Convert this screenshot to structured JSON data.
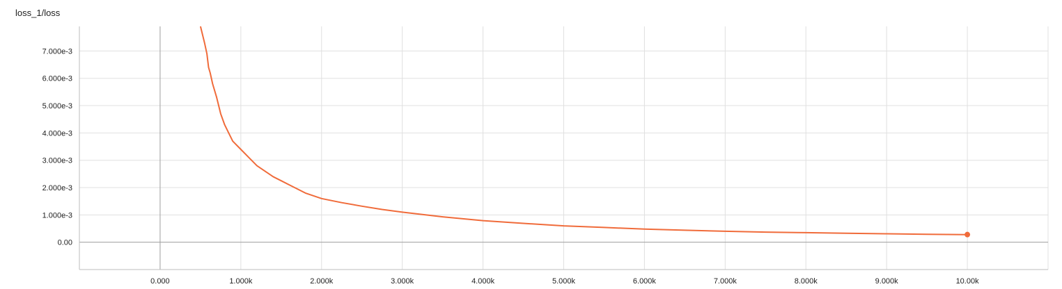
{
  "chart_data": {
    "type": "line",
    "title": "loss_1/loss",
    "xlabel": "",
    "ylabel": "",
    "xlim": [
      -1000,
      11000
    ],
    "ylim": [
      -0.001,
      0.0079
    ],
    "x_ticks": [
      0,
      1000,
      2000,
      3000,
      4000,
      5000,
      6000,
      7000,
      8000,
      9000,
      10000
    ],
    "x_tick_labels": [
      "0.000",
      "1.000k",
      "2.000k",
      "3.000k",
      "4.000k",
      "5.000k",
      "6.000k",
      "7.000k",
      "8.000k",
      "9.000k",
      "10.00k"
    ],
    "y_ticks": [
      0,
      0.001,
      0.002,
      0.003,
      0.004,
      0.005,
      0.006,
      0.007
    ],
    "y_tick_labels": [
      "0.00",
      "1.000e-3",
      "2.000e-3",
      "3.000e-3",
      "4.000e-3",
      "5.000e-3",
      "6.000e-3",
      "7.000e-3"
    ],
    "grid": true,
    "series": [
      {
        "color": "#f06b3a",
        "x": [
          500,
          550,
          580,
          600,
          620,
          650,
          700,
          750,
          800,
          850,
          900,
          1000,
          1100,
          1200,
          1300,
          1400,
          1500,
          1600,
          1800,
          2000,
          2250,
          2500,
          2750,
          3000,
          3500,
          4000,
          4500,
          5000,
          5500,
          6000,
          6500,
          7000,
          7500,
          8000,
          8500,
          9000,
          9500,
          10000
        ],
        "y": [
          0.0079,
          0.0073,
          0.0069,
          0.0064,
          0.0062,
          0.0058,
          0.0053,
          0.0047,
          0.0043,
          0.004,
          0.0037,
          0.0034,
          0.0031,
          0.0028,
          0.0026,
          0.0024,
          0.00225,
          0.0021,
          0.0018,
          0.0016,
          0.00145,
          0.00132,
          0.0012,
          0.0011,
          0.00093,
          0.00079,
          0.00069,
          0.0006,
          0.00054,
          0.00048,
          0.00044,
          0.0004,
          0.00037,
          0.00035,
          0.00033,
          0.00031,
          0.00029,
          0.00028
        ]
      }
    ]
  }
}
